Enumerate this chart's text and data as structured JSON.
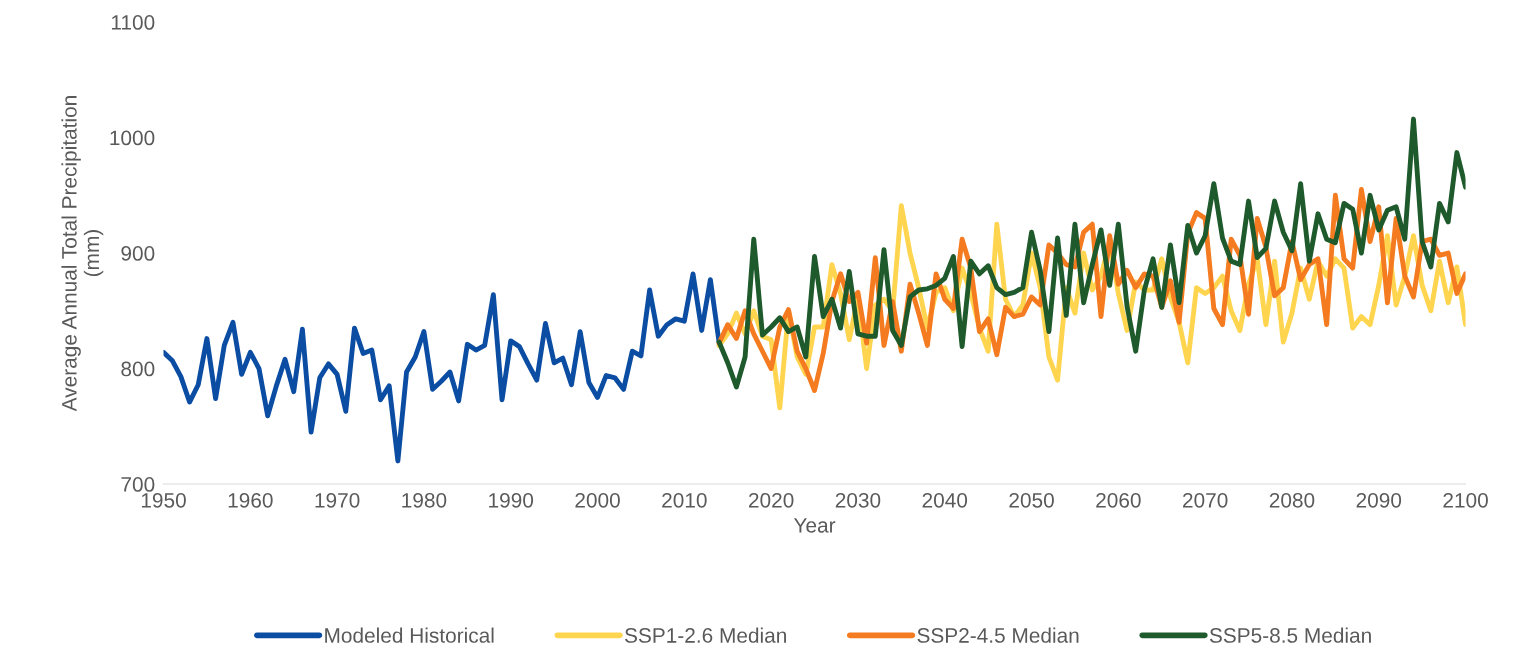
{
  "chart_data": {
    "type": "line",
    "xlabel": "Year",
    "ylabel": "Average Annual Total Precipitation\n(mm)",
    "xlim": [
      1950,
      2100
    ],
    "xticks": [
      1950,
      1960,
      1970,
      1980,
      1990,
      2000,
      2010,
      2020,
      2030,
      2040,
      2050,
      2060,
      2070,
      2080,
      2090,
      2100
    ],
    "ylim": [
      700,
      1100
    ],
    "yticks": [
      700,
      800,
      900,
      1000,
      1100
    ],
    "grid": false,
    "legend": "bottom",
    "marker": "none",
    "line_style": "solid",
    "series": [
      {
        "name": "Modeled Historical",
        "color": "#0b4da2",
        "x": [
          1950,
          1951,
          1952,
          1953,
          1954,
          1955,
          1956,
          1957,
          1958,
          1959,
          1960,
          1961,
          1962,
          1963,
          1964,
          1965,
          1966,
          1967,
          1968,
          1969,
          1970,
          1971,
          1972,
          1973,
          1974,
          1975,
          1976,
          1977,
          1978,
          1979,
          1980,
          1981,
          1982,
          1983,
          1984,
          1985,
          1986,
          1987,
          1988,
          1989,
          1990,
          1991,
          1992,
          1993,
          1994,
          1995,
          1996,
          1997,
          1998,
          1999,
          2000,
          2001,
          2002,
          2003,
          2004,
          2005,
          2006,
          2007,
          2008,
          2009,
          2010,
          2011,
          2012,
          2013,
          2014
        ],
        "values": [
          814,
          807,
          793,
          771,
          786,
          826,
          774,
          820,
          840,
          795,
          814,
          800,
          759,
          785,
          808,
          780,
          834,
          745,
          792,
          804,
          795,
          763,
          835,
          813,
          816,
          773,
          785,
          720,
          797,
          810,
          832,
          782,
          789,
          797,
          772,
          821,
          816,
          820,
          864,
          773,
          824,
          819,
          804,
          790,
          839,
          805,
          809,
          786,
          832,
          788,
          775,
          794,
          792,
          782,
          815,
          811,
          868,
          828,
          838,
          843,
          841,
          882,
          833,
          877,
          823
        ]
      },
      {
        "name": "SSP1-2.6 Median",
        "color": "#ffd54f",
        "x": [
          2014,
          2015,
          2016,
          2017,
          2018,
          2019,
          2020,
          2021,
          2022,
          2023,
          2024,
          2025,
          2026,
          2027,
          2028,
          2029,
          2030,
          2031,
          2032,
          2033,
          2034,
          2035,
          2036,
          2037,
          2038,
          2039,
          2040,
          2041,
          2042,
          2043,
          2044,
          2045,
          2046,
          2047,
          2048,
          2049,
          2050,
          2051,
          2052,
          2053,
          2054,
          2055,
          2056,
          2057,
          2058,
          2059,
          2060,
          2061,
          2062,
          2063,
          2064,
          2065,
          2066,
          2067,
          2068,
          2069,
          2070,
          2071,
          2072,
          2073,
          2074,
          2075,
          2076,
          2077,
          2078,
          2079,
          2080,
          2081,
          2082,
          2083,
          2084,
          2085,
          2086,
          2087,
          2088,
          2089,
          2090,
          2091,
          2092,
          2093,
          2094,
          2095,
          2096,
          2097,
          2098,
          2099,
          2100
        ],
        "values": [
          820,
          830,
          848,
          830,
          850,
          828,
          825,
          766,
          850,
          810,
          795,
          836,
          836,
          890,
          865,
          825,
          862,
          800,
          855,
          860,
          850,
          941,
          900,
          870,
          835,
          866,
          870,
          850,
          887,
          865,
          835,
          815,
          925,
          860,
          845,
          855,
          900,
          870,
          810,
          790,
          870,
          848,
          900,
          868,
          880,
          910,
          865,
          833,
          875,
          868,
          868,
          895,
          862,
          840,
          805,
          870,
          865,
          870,
          880,
          850,
          833,
          873,
          895,
          838,
          893,
          823,
          848,
          887,
          860,
          893,
          880,
          895,
          887,
          835,
          845,
          838,
          872,
          915,
          855,
          880,
          915,
          872,
          850,
          893,
          857,
          888,
          838
        ]
      },
      {
        "name": "SSP2-4.5 Median",
        "color": "#f47b20",
        "x": [
          2014,
          2015,
          2016,
          2017,
          2018,
          2019,
          2020,
          2021,
          2022,
          2023,
          2024,
          2025,
          2026,
          2027,
          2028,
          2029,
          2030,
          2031,
          2032,
          2033,
          2034,
          2035,
          2036,
          2037,
          2038,
          2039,
          2040,
          2041,
          2042,
          2043,
          2044,
          2045,
          2046,
          2047,
          2048,
          2049,
          2050,
          2051,
          2052,
          2053,
          2054,
          2055,
          2056,
          2057,
          2058,
          2059,
          2060,
          2061,
          2062,
          2063,
          2064,
          2065,
          2066,
          2067,
          2068,
          2069,
          2070,
          2071,
          2072,
          2073,
          2074,
          2075,
          2076,
          2077,
          2078,
          2079,
          2080,
          2081,
          2082,
          2083,
          2084,
          2085,
          2086,
          2087,
          2088,
          2089,
          2090,
          2091,
          2092,
          2093,
          2094,
          2095,
          2096,
          2097,
          2098,
          2099,
          2100
        ],
        "values": [
          822,
          838,
          826,
          850,
          830,
          815,
          800,
          836,
          851,
          815,
          800,
          781,
          813,
          858,
          882,
          858,
          866,
          822,
          896,
          820,
          858,
          815,
          873,
          848,
          820,
          882,
          860,
          852,
          912,
          887,
          832,
          843,
          812,
          853,
          845,
          847,
          862,
          855,
          907,
          900,
          890,
          888,
          918,
          925,
          845,
          915,
          873,
          885,
          870,
          882,
          880,
          853,
          876,
          840,
          917,
          935,
          930,
          852,
          838,
          912,
          898,
          847,
          930,
          905,
          863,
          870,
          910,
          877,
          890,
          895,
          838,
          950,
          895,
          887,
          955,
          910,
          940,
          857,
          930,
          880,
          862,
          910,
          912,
          898,
          900,
          865,
          882
        ]
      },
      {
        "name": "SSP5-8.5 Median",
        "color": "#1e5a2b",
        "x": [
          2014,
          2015,
          2016,
          2017,
          2018,
          2019,
          2020,
          2021,
          2022,
          2023,
          2024,
          2025,
          2026,
          2027,
          2028,
          2029,
          2030,
          2031,
          2032,
          2033,
          2034,
          2035,
          2036,
          2037,
          2038,
          2039,
          2040,
          2041,
          2042,
          2043,
          2044,
          2045,
          2046,
          2047,
          2048,
          2049,
          2050,
          2051,
          2052,
          2053,
          2054,
          2055,
          2056,
          2057,
          2058,
          2059,
          2060,
          2061,
          2062,
          2063,
          2064,
          2065,
          2066,
          2067,
          2068,
          2069,
          2070,
          2071,
          2072,
          2073,
          2074,
          2075,
          2076,
          2077,
          2078,
          2079,
          2080,
          2081,
          2082,
          2083,
          2084,
          2085,
          2086,
          2087,
          2088,
          2089,
          2090,
          2091,
          2092,
          2093,
          2094,
          2095,
          2096,
          2097,
          2098,
          2099,
          2100
        ],
        "values": [
          823,
          805,
          784,
          810,
          912,
          829,
          836,
          844,
          832,
          836,
          810,
          897,
          845,
          860,
          835,
          884,
          830,
          828,
          828,
          903,
          833,
          820,
          862,
          868,
          869,
          872,
          878,
          897,
          819,
          893,
          882,
          889,
          870,
          864,
          866,
          870,
          918,
          885,
          832,
          913,
          846,
          925,
          857,
          890,
          920,
          872,
          925,
          854,
          815,
          868,
          895,
          853,
          907,
          857,
          924,
          900,
          915,
          960,
          913,
          893,
          890,
          945,
          896,
          904,
          945,
          918,
          902,
          960,
          893,
          934,
          912,
          909,
          943,
          938,
          900,
          950,
          920,
          937,
          940,
          912,
          1016,
          910,
          888,
          943,
          927,
          987,
          957
        ]
      }
    ]
  }
}
